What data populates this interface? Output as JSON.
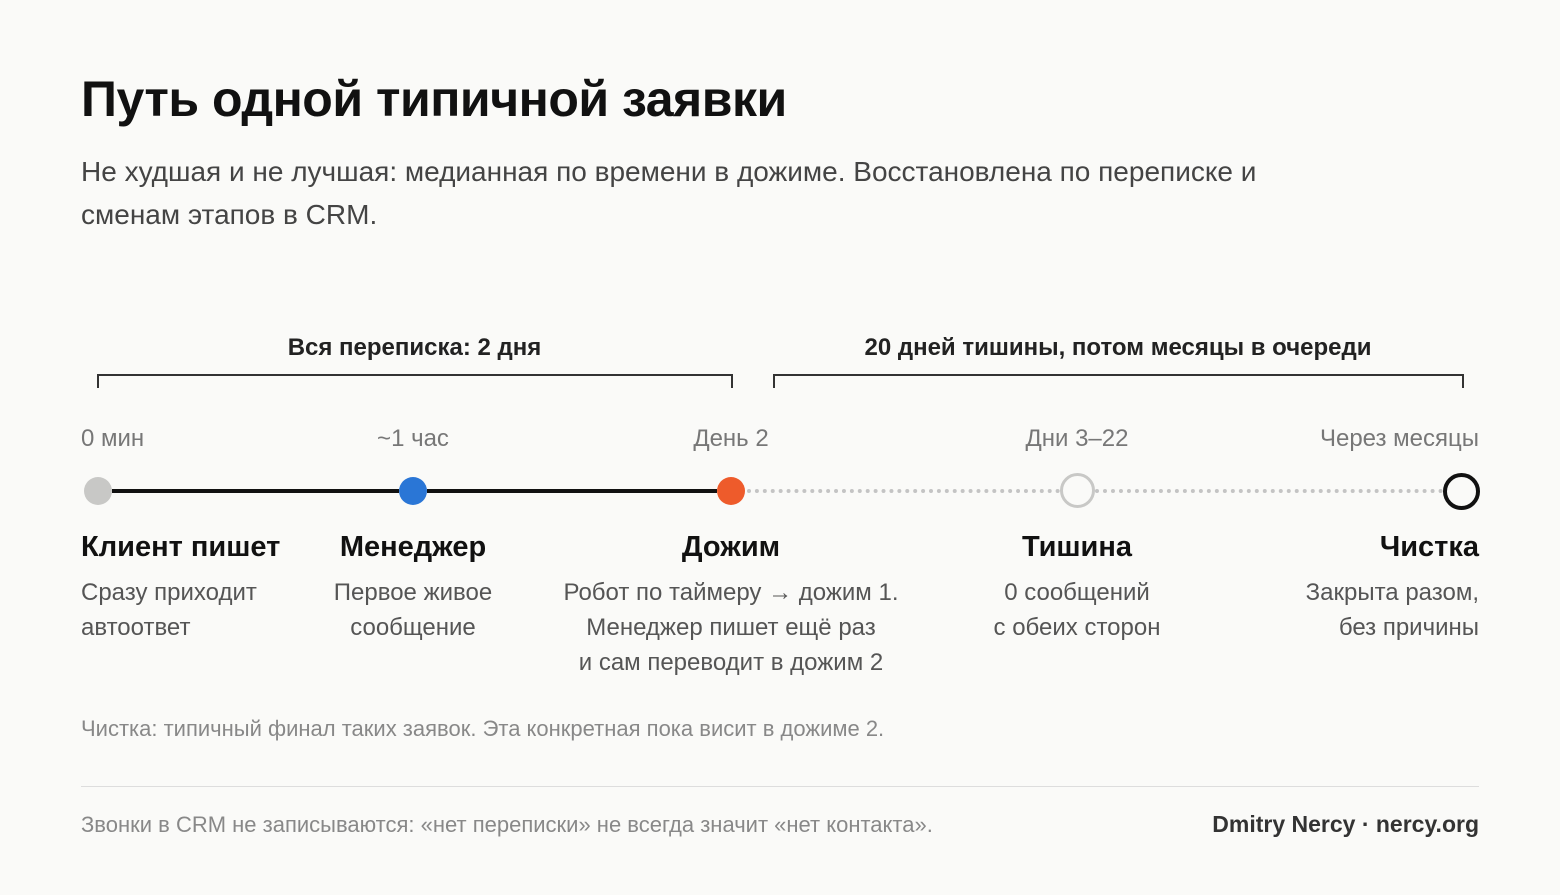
{
  "header": {
    "title": "Путь одной типичной заявки",
    "subtitle": "Не худшая и не лучшая: медианная по времени в дожиме. Восстановлена по переписке и сменам этапов в CRM."
  },
  "brackets": {
    "left_label": "Вся переписка: 2 дня",
    "right_label": "20 дней тишины, потом месяцы в очереди"
  },
  "stages": [
    {
      "time": "0 мин",
      "title": "Клиент пишет",
      "desc": [
        "Сразу приходит",
        "автоответ"
      ],
      "color": "#c8c8c6",
      "style": "filled"
    },
    {
      "time": "~1 час",
      "title": "Менеджер",
      "desc": [
        "Первое живое",
        "сообщение"
      ],
      "color": "#2a76d6",
      "style": "filled"
    },
    {
      "time": "День 2",
      "title": "Дожим",
      "desc": [
        "Робот по таймеру → дожим 1.",
        "Менеджер пишет ещё раз",
        "и сам переводит в дожим 2"
      ],
      "color": "#ee5b2b",
      "style": "filled"
    },
    {
      "time": "Дни 3–22",
      "title": "Тишина",
      "desc": [
        "0 сообщений",
        "с обеих сторон"
      ],
      "color": "#c8c8c6",
      "style": "ring"
    },
    {
      "time": "Через месяцы",
      "title": "Чистка",
      "desc": [
        "Закрыта разом,",
        "без причины"
      ],
      "color": "#111111",
      "style": "ring"
    }
  ],
  "note": "Чистка: типичный финал таких заявок. Эта конкретная пока висит в дожиме 2.",
  "footer": {
    "left": "Звонки в CRM не записываются: «нет переписки» не всегда значит «нет контакта».",
    "right": "Dmitry Nercy · nercy.org"
  }
}
